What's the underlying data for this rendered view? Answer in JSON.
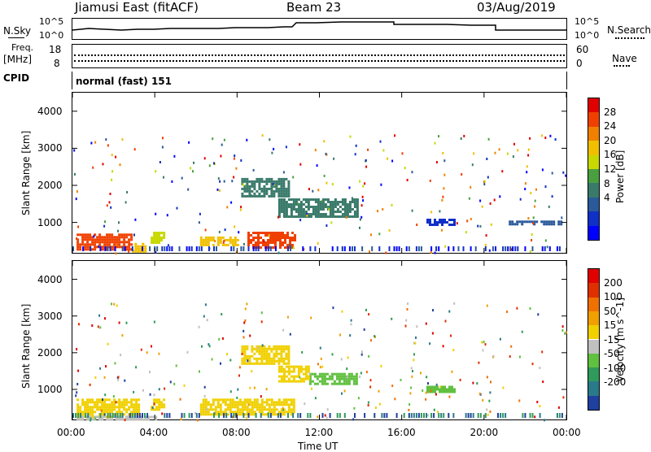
{
  "header": {
    "radar": "Jiamusi East (fitACF)",
    "beam": "Beam 23",
    "date": "03/Aug/2019"
  },
  "panels": {
    "nsky_label": "N.Sky",
    "nsky_ticks": [
      "10^5",
      "10^0"
    ],
    "nsearch_label": "N.Search",
    "nsearch_ticks": [
      "10^5",
      "10^0"
    ],
    "freq_label_1": "Freq.",
    "freq_label_2": "[MHz]",
    "freq_ticks": [
      "18",
      "8"
    ],
    "nave_label": "Nave",
    "nave_ticks": [
      "60",
      "0"
    ],
    "cpid_label": "CPID",
    "cpid_value": "normal (fast) 151"
  },
  "time_axis": {
    "ticks": [
      "00:00",
      "04:00",
      "08:00",
      "12:00",
      "16:00",
      "20:00",
      "00:00"
    ],
    "label": "Time UT"
  },
  "power_colorbar": {
    "label": "Power [dB]",
    "ticks": [
      "28",
      "24",
      "20",
      "16",
      "12",
      "8",
      "4"
    ],
    "colors": [
      "#0000ff",
      "#1030c8",
      "#2a5a9a",
      "#3a7a6a",
      "#4aa040",
      "#c8d800",
      "#f0c000",
      "#f08000",
      "#f04000",
      "#e00000"
    ]
  },
  "velocity_colorbar": {
    "label": "Velocity [m s^-1]",
    "ticks": [
      "200",
      "100",
      "50",
      "15",
      "-15",
      "-50",
      "-100",
      "-200"
    ],
    "colors": [
      "#2040a0",
      "#2a7a8a",
      "#2f9a5a",
      "#60c040",
      "#c0c0c0",
      "#f0d000",
      "#f0a000",
      "#f07000",
      "#e03000",
      "#e00000"
    ]
  },
  "chart_data": [
    {
      "type": "heatmap",
      "title": "Power",
      "xlabel": "Time UT",
      "ylabel": "Slant Range [km]",
      "xlim": [
        "00:00",
        "24:00"
      ],
      "ylim": [
        180,
        4500
      ],
      "yticks": [
        1000,
        2000,
        3000,
        4000
      ],
      "colorbar": {
        "label": "Power [dB]",
        "range": [
          0,
          32
        ]
      },
      "regions": [
        {
          "t_start": 0.2,
          "t_end": 2.9,
          "r_min": 250,
          "r_max": 700,
          "value": 26
        },
        {
          "t_start": 2.9,
          "t_end": 3.5,
          "r_min": 200,
          "r_max": 450,
          "value": 20
        },
        {
          "t_start": 3.8,
          "t_end": 4.4,
          "r_min": 450,
          "r_max": 750,
          "value": 18
        },
        {
          "t_start": 6.2,
          "t_end": 8.0,
          "r_min": 380,
          "r_max": 620,
          "value": 22
        },
        {
          "t_start": 8.5,
          "t_end": 10.8,
          "r_min": 300,
          "r_max": 750,
          "value": 26
        },
        {
          "t_start": 8.2,
          "t_end": 10.5,
          "r_min": 1700,
          "r_max": 2200,
          "value": 10
        },
        {
          "t_start": 10.0,
          "t_end": 13.8,
          "r_min": 1150,
          "r_max": 1650,
          "value": 12
        },
        {
          "t_start": 17.2,
          "t_end": 18.6,
          "r_min": 950,
          "r_max": 1100,
          "value": 6
        },
        {
          "t_start": 21.2,
          "t_end": 23.8,
          "r_min": 950,
          "r_max": 1050,
          "value": 8
        }
      ]
    },
    {
      "type": "heatmap",
      "title": "Velocity",
      "xlabel": "Time UT",
      "ylabel": "Slant Range [km]",
      "xlim": [
        "00:00",
        "24:00"
      ],
      "ylim": [
        180,
        4500
      ],
      "yticks": [
        1000,
        2000,
        3000,
        4000
      ],
      "colorbar": {
        "label": "Velocity [m s^-1]",
        "range": [
          -250,
          250
        ]
      },
      "regions": [
        {
          "t_start": 0.2,
          "t_end": 3.2,
          "r_min": 250,
          "r_max": 750,
          "value": 0
        },
        {
          "t_start": 3.8,
          "t_end": 4.4,
          "r_min": 450,
          "r_max": 750,
          "value": 0
        },
        {
          "t_start": 6.2,
          "t_end": 10.8,
          "r_min": 300,
          "r_max": 750,
          "value": 0
        },
        {
          "t_start": 8.2,
          "t_end": 10.5,
          "r_min": 1700,
          "r_max": 2200,
          "value": 0
        },
        {
          "t_start": 11.5,
          "t_end": 13.8,
          "r_min": 1150,
          "r_max": 1450,
          "value": -60
        },
        {
          "t_start": 10.0,
          "t_end": 11.5,
          "r_min": 1250,
          "r_max": 1650,
          "value": 40
        },
        {
          "t_start": 17.2,
          "t_end": 18.6,
          "r_min": 950,
          "r_max": 1100,
          "value": -60
        },
        {
          "t_start": 0.2,
          "t_end": 4.0,
          "r_min": 180,
          "r_max": 280,
          "value": -40
        }
      ]
    }
  ]
}
